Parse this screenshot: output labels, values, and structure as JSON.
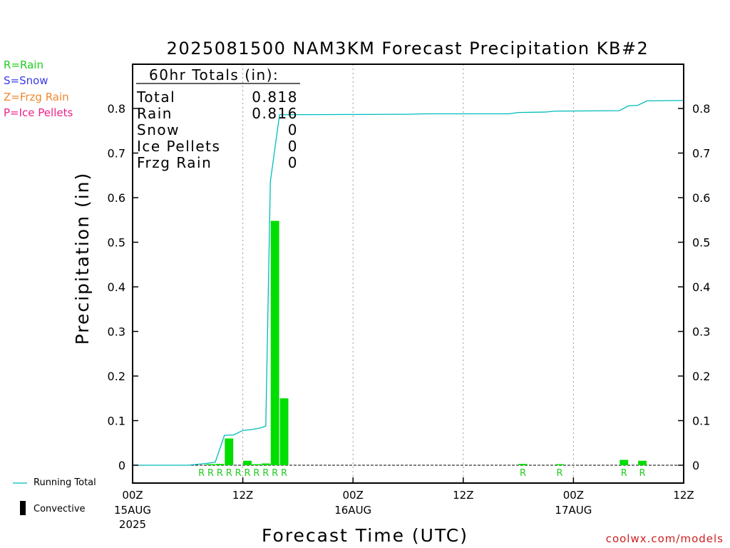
{
  "chart_data": {
    "type": "bar",
    "title": "2025081500 NAM3KM Forecast Precipitation KB#2",
    "xlabel": "Forecast Time (UTC)",
    "ylabel": "Precipitation (in)",
    "ylim": [
      0,
      0.9
    ],
    "y_ticks": [
      "0",
      "0.1",
      "0.2",
      "0.3",
      "0.4",
      "0.5",
      "0.6",
      "0.7",
      "0.8"
    ],
    "x_range_hours": [
      0,
      60
    ],
    "x_ticks": [
      {
        "hour": 0,
        "label": "00Z",
        "sub": [
          "15AUG",
          "2025"
        ]
      },
      {
        "hour": 12,
        "label": "12Z",
        "sub": []
      },
      {
        "hour": 24,
        "label": "00Z",
        "sub": [
          "16AUG"
        ]
      },
      {
        "hour": 36,
        "label": "12Z",
        "sub": []
      },
      {
        "hour": 48,
        "label": "00Z",
        "sub": [
          "17AUG"
        ]
      },
      {
        "hour": 60,
        "label": "12Z",
        "sub": []
      }
    ],
    "grid": "vertical dotted",
    "series": [
      {
        "name": "Convective",
        "kind": "bar",
        "color": "#00dd00",
        "values": [
          {
            "hour": 8,
            "value": 0.002
          },
          {
            "hour": 9,
            "value": 0.003
          },
          {
            "hour": 10,
            "value": 0.06
          },
          {
            "hour": 12,
            "value": 0.01
          },
          {
            "hour": 13,
            "value": 0.002
          },
          {
            "hour": 14,
            "value": 0.004
          },
          {
            "hour": 15,
            "value": 0.548
          },
          {
            "hour": 16,
            "value": 0.15
          },
          {
            "hour": 42,
            "value": 0.003
          },
          {
            "hour": 46,
            "value": 0.002
          },
          {
            "hour": 53,
            "value": 0.012
          },
          {
            "hour": 55,
            "value": 0.01
          }
        ]
      },
      {
        "name": "Running Total",
        "kind": "line",
        "color": "#00bbbb",
        "points": [
          [
            0,
            0
          ],
          [
            6,
            0
          ],
          [
            7,
            0.002
          ],
          [
            8,
            0.004
          ],
          [
            9,
            0.007
          ],
          [
            10,
            0.067
          ],
          [
            11,
            0.068
          ],
          [
            12,
            0.078
          ],
          [
            13,
            0.08
          ],
          [
            14,
            0.084
          ],
          [
            14.5,
            0.088
          ],
          [
            15,
            0.636
          ],
          [
            16,
            0.786
          ],
          [
            30,
            0.787
          ],
          [
            32,
            0.788
          ],
          [
            41,
            0.788
          ],
          [
            42,
            0.791
          ],
          [
            45,
            0.792
          ],
          [
            46,
            0.794
          ],
          [
            53,
            0.795
          ],
          [
            54,
            0.806
          ],
          [
            55,
            0.807
          ],
          [
            56,
            0.817
          ],
          [
            60,
            0.818
          ]
        ]
      }
    ],
    "ptype_markers": [
      {
        "hour": 7.5,
        "label": "R"
      },
      {
        "hour": 8.5,
        "label": "R"
      },
      {
        "hour": 9.5,
        "label": "R"
      },
      {
        "hour": 10.5,
        "label": "R"
      },
      {
        "hour": 11.5,
        "label": "R"
      },
      {
        "hour": 12.5,
        "label": "R"
      },
      {
        "hour": 13.5,
        "label": "R"
      },
      {
        "hour": 14.5,
        "label": "R"
      },
      {
        "hour": 15.5,
        "label": "R"
      },
      {
        "hour": 16.5,
        "label": "R"
      },
      {
        "hour": 42.5,
        "label": "R"
      },
      {
        "hour": 46.5,
        "label": "R"
      },
      {
        "hour": 53.5,
        "label": "R"
      },
      {
        "hour": 55.5,
        "label": "R"
      }
    ],
    "totals": {
      "header": "60hr Totals (in):",
      "rows": [
        {
          "label": "Total",
          "value": "0.818"
        },
        {
          "label": "Rain",
          "value": "0.816"
        },
        {
          "label": "Snow",
          "value": "0"
        },
        {
          "label": "Ice Pellets",
          "value": "0"
        },
        {
          "label": "Frzg Rain",
          "value": "0"
        }
      ]
    },
    "ptype_legend": [
      {
        "text": "R=Rain",
        "color": "#22cc22"
      },
      {
        "text": "S=Snow",
        "color": "#3a3aee"
      },
      {
        "text": "Z=Frzg Rain",
        "color": "#ee8833"
      },
      {
        "text": "P=Ice Pellets",
        "color": "#ee2288"
      }
    ],
    "key": {
      "line": "Running Total",
      "bar": "Convective"
    },
    "credit": "coolwx.com/models"
  }
}
